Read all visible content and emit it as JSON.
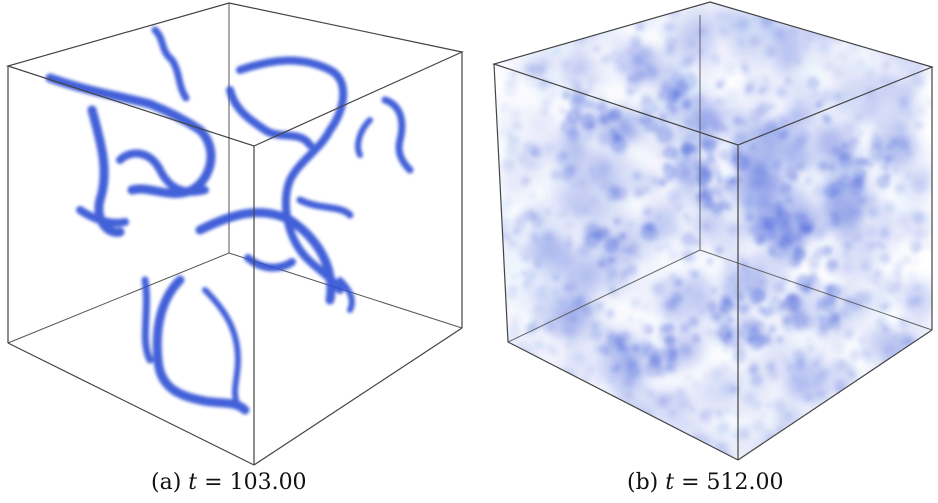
{
  "figure": {
    "panels": [
      {
        "label": "(a)",
        "variable": "t",
        "equals": "=",
        "value": "103.00",
        "render": "vortex-filaments"
      },
      {
        "label": "(b)",
        "variable": "t",
        "equals": "=",
        "value": "512.00",
        "render": "diffuse-cloud"
      }
    ],
    "colors": {
      "density": "#2f4fd4",
      "edge": "#444444",
      "background": "#ffffff"
    }
  }
}
